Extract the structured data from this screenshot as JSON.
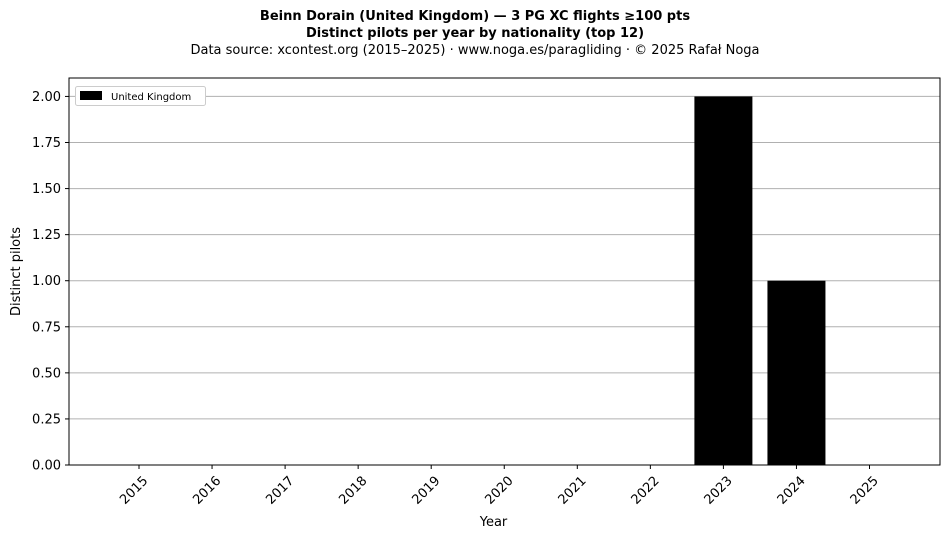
{
  "title_line1": "Beinn Dorain (United Kingdom)  —  3 PG XC flights ≥100 pts",
  "title_line2": "Distinct pilots per year by nationality (top 12)",
  "subtitle": "Data source: xcontest.org (2015–2025)  ·  www.noga.es/paragliding  ·  © 2025 Rafał Noga",
  "chart_data": {
    "type": "bar",
    "title": "Beinn Dorain (United Kingdom)  —  3 PG XC flights ≥100 pts",
    "xlabel": "Year",
    "ylabel": "Distinct pilots",
    "categories": [
      "2015",
      "2016",
      "2017",
      "2018",
      "2019",
      "2020",
      "2021",
      "2022",
      "2023",
      "2024",
      "2025"
    ],
    "series": [
      {
        "name": "United Kingdom",
        "color": "#000000",
        "values": [
          0,
          0,
          0,
          0,
          0,
          0,
          0,
          0,
          2,
          1,
          0
        ]
      }
    ],
    "ylim": [
      0,
      2.1
    ],
    "yticks": [
      "0.00",
      "0.25",
      "0.50",
      "0.75",
      "1.00",
      "1.25",
      "1.50",
      "1.75",
      "2.00"
    ],
    "grid": "horizontal",
    "legend_position": "top-left"
  }
}
